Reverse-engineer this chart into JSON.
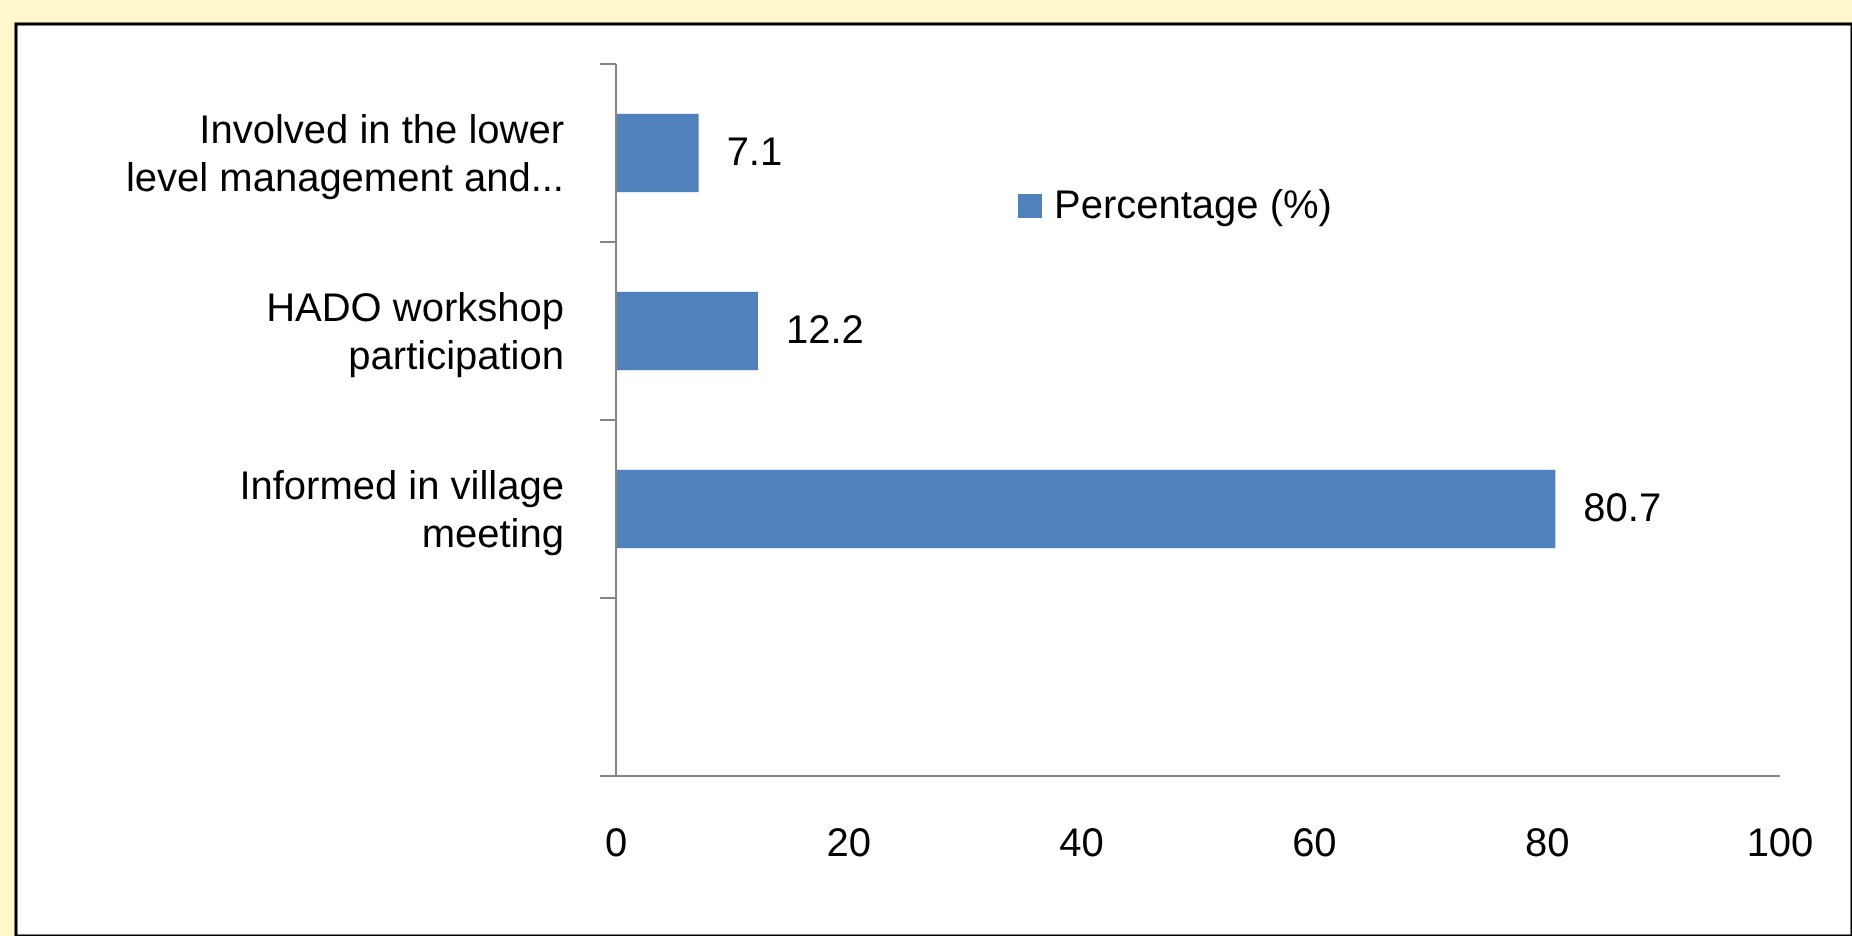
{
  "chart_data": {
    "type": "bar",
    "orientation": "horizontal",
    "categories": [
      "Involved in the lower level management and...",
      "HADO workshop participation",
      "Informed in village meeting",
      null
    ],
    "series": [
      {
        "name": "Percentage (%)",
        "color": "#4f81bd",
        "values": [
          7.1,
          12.2,
          80.7,
          null
        ]
      }
    ],
    "xlim": [
      0,
      100
    ],
    "xticks": [
      0,
      20,
      40,
      60,
      80,
      100
    ],
    "data_labels": true,
    "legend": "top",
    "grid": false
  }
}
